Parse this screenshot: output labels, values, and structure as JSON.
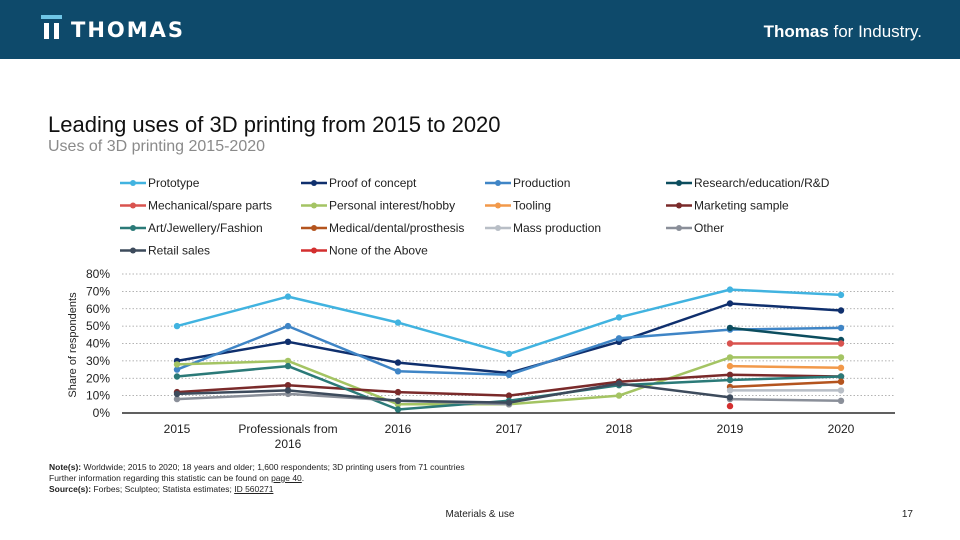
{
  "header": {
    "logo_text": "THOMAS",
    "tagline_bold": "Thomas",
    "tagline_rest": " for Industry."
  },
  "footer": {
    "notes_label": "Note(s):",
    "notes_text": " Worldwide; 2015 to 2020; 18 years and older; 1,600 respondents; 3D printing users from 71 countries",
    "further_text": "Further information regarding this statistic can be found on ",
    "further_link": "page 40",
    "further_end": ".",
    "source_label": "Source(s):",
    "source_text": " Forbes; Sculpteo; Statista estimates; ",
    "source_id": "ID 560271",
    "center_text": "Materials & use",
    "page_number": "17"
  },
  "chart_data": {
    "type": "line",
    "title": "Leading uses of 3D printing from 2015 to 2020",
    "subtitle": "Uses of 3D printing 2015-2020",
    "ylabel": "Share of respondents",
    "xlabel": "",
    "categories": [
      "2015",
      "Professionals from 2016",
      "2016",
      "2017",
      "2018",
      "2019",
      "2020"
    ],
    "ylim": [
      0,
      80
    ],
    "yticks": [
      "0%",
      "10%",
      "20%",
      "30%",
      "40%",
      "50%",
      "60%",
      "70%",
      "80%"
    ],
    "grid": "horizontal dotted",
    "legend_position": "top",
    "series": [
      {
        "name": "Prototype",
        "color": "#41b3e0",
        "values": [
          50,
          67,
          52,
          34,
          55,
          71,
          68
        ]
      },
      {
        "name": "Proof of concept",
        "color": "#0f2f6d",
        "values": [
          30,
          41,
          29,
          23,
          41,
          63,
          59
        ]
      },
      {
        "name": "Production",
        "color": "#3f85c6",
        "values": [
          25,
          50,
          24,
          22,
          43,
          48,
          49
        ]
      },
      {
        "name": "Research/education/R&D",
        "color": "#0c4d5e",
        "values": [
          null,
          null,
          null,
          null,
          null,
          49,
          42
        ]
      },
      {
        "name": "Mechanical/spare parts",
        "color": "#d9534f",
        "values": [
          null,
          null,
          null,
          null,
          null,
          40,
          40
        ]
      },
      {
        "name": "Personal interest/hobby",
        "color": "#a4c463",
        "values": [
          28,
          30,
          5,
          5,
          10,
          32,
          32
        ]
      },
      {
        "name": "Tooling",
        "color": "#f2994a",
        "values": [
          null,
          null,
          null,
          null,
          null,
          27,
          26
        ]
      },
      {
        "name": "Marketing sample",
        "color": "#7a2a2a",
        "values": [
          12,
          16,
          12,
          10,
          18,
          22,
          21
        ]
      },
      {
        "name": "Art/Jewellery/Fashion",
        "color": "#2b7a78",
        "values": [
          21,
          27,
          2,
          7,
          16,
          19,
          21
        ]
      },
      {
        "name": "Medical/dental/prosthesis",
        "color": "#b4541e",
        "values": [
          null,
          null,
          null,
          null,
          null,
          15,
          18
        ]
      },
      {
        "name": "Mass production",
        "color": "#b8bec6",
        "values": [
          null,
          null,
          null,
          null,
          null,
          13,
          13
        ]
      },
      {
        "name": "Other",
        "color": "#8a8f99",
        "values": [
          8,
          11,
          7,
          5,
          null,
          8,
          7
        ]
      },
      {
        "name": "Retail sales",
        "color": "#3d4b5c",
        "values": [
          11,
          13,
          7,
          6,
          17,
          9,
          null
        ]
      },
      {
        "name": "None of the Above",
        "color": "#d32f2f",
        "values": [
          null,
          null,
          null,
          null,
          null,
          4,
          null
        ]
      }
    ]
  }
}
